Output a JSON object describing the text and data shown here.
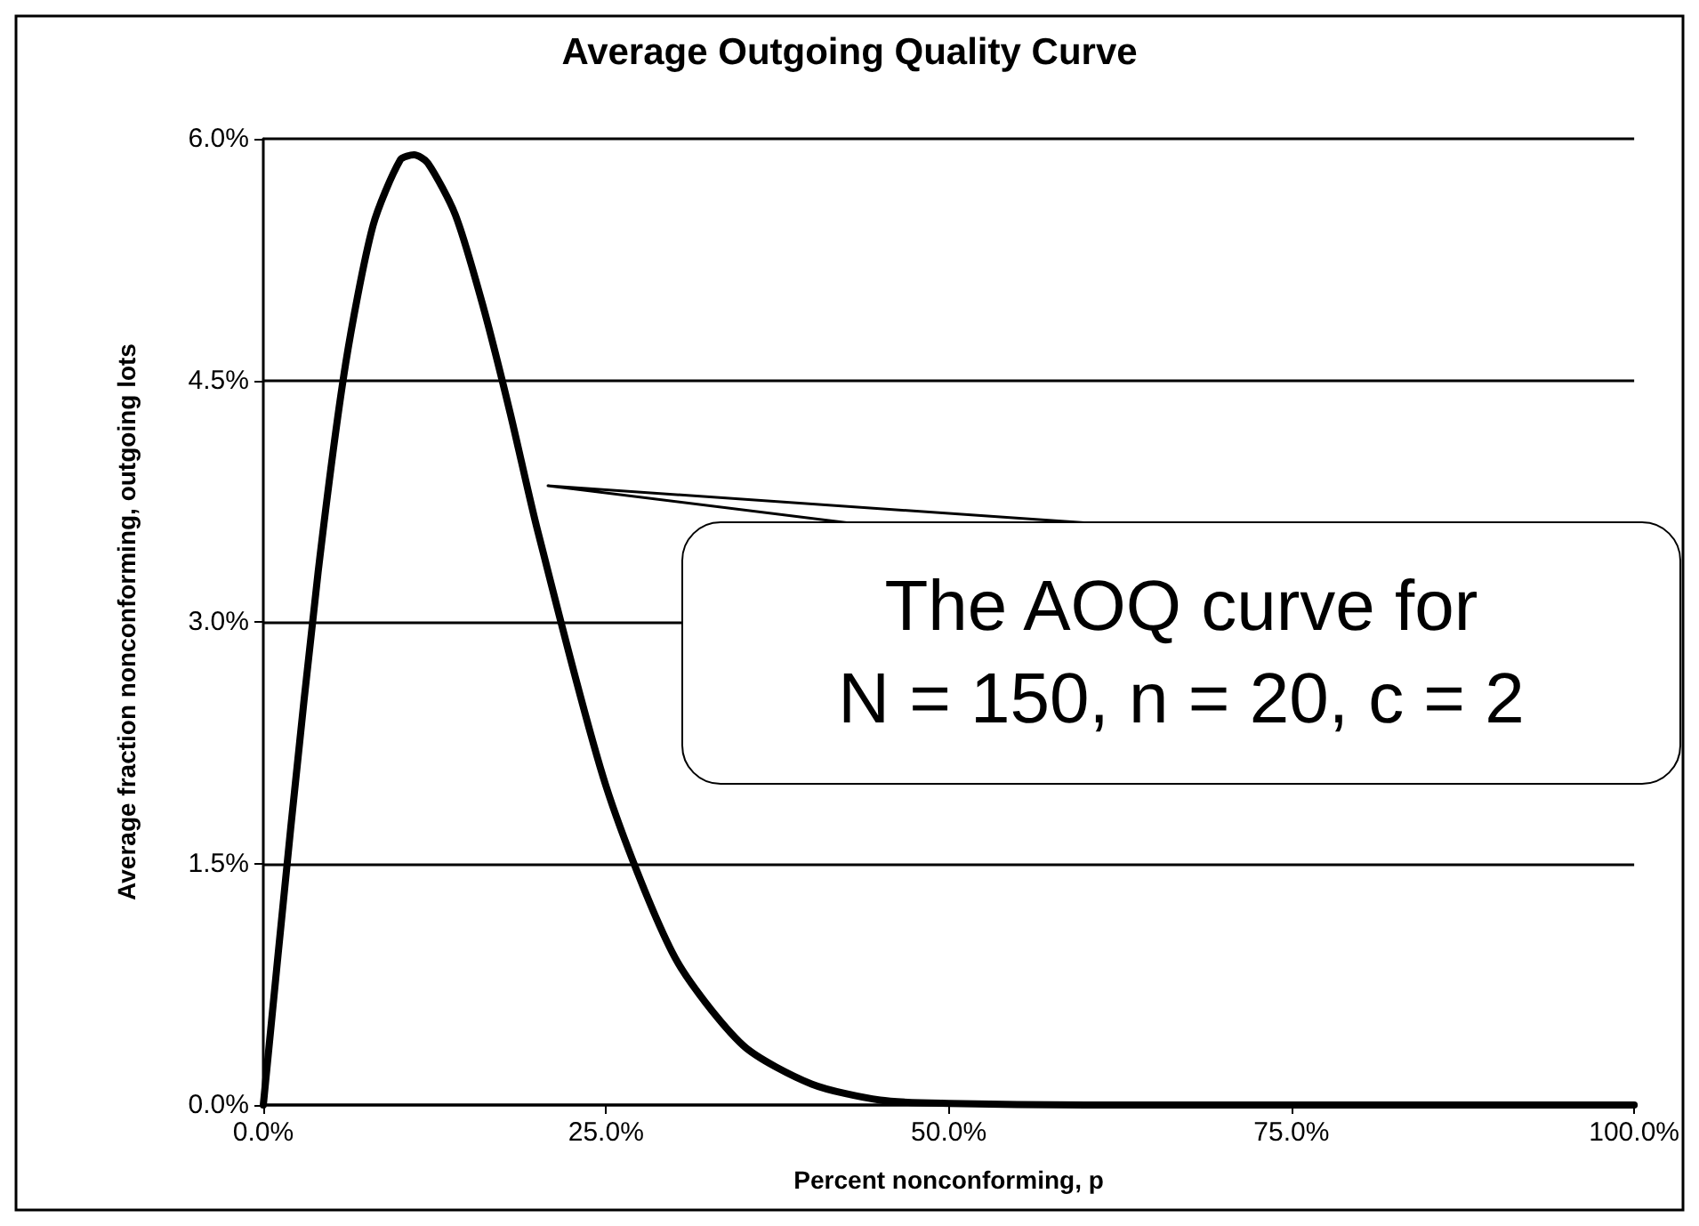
{
  "chart_data": {
    "type": "line",
    "title": "Average Outgoing Quality Curve",
    "xlabel": "Percent nonconforming, p",
    "ylabel": "Average fraction nonconforming, outgoing lots",
    "x": [
      0,
      2,
      4,
      6,
      8,
      10,
      11,
      12,
      14,
      16,
      18,
      20,
      25,
      30,
      35,
      40,
      45,
      50,
      60,
      70,
      80,
      90,
      100
    ],
    "series": [
      {
        "color": "#000000",
        "values": [
          0,
          1.72,
          3.31,
          4.6,
          5.46,
          5.87,
          5.9,
          5.85,
          5.53,
          4.97,
          4.3,
          3.57,
          1.98,
          0.92,
          0.37,
          0.13,
          0.03,
          0.01,
          0,
          0,
          0,
          0,
          0
        ]
      }
    ],
    "xlim": [
      0,
      100
    ],
    "ylim": [
      0,
      6
    ],
    "xticks": [
      {
        "value": 0,
        "label": "0.0%"
      },
      {
        "value": 25,
        "label": "25.0%"
      },
      {
        "value": 50,
        "label": "50.0%"
      },
      {
        "value": 75,
        "label": "75.0%"
      },
      {
        "value": 100,
        "label": "100.0%"
      }
    ],
    "yticks": [
      {
        "value": 0,
        "label": "0.0%"
      },
      {
        "value": 1.5,
        "label": "1.5%"
      },
      {
        "value": 3,
        "label": "3.0%"
      },
      {
        "value": 4.5,
        "label": "4.5%"
      },
      {
        "value": 6,
        "label": "6.0%"
      }
    ],
    "grid": "y",
    "marker": "none",
    "line_style": "solid",
    "annotations": [
      "The AOQ curve for\nN = 150, n = 20, c = 2"
    ]
  }
}
